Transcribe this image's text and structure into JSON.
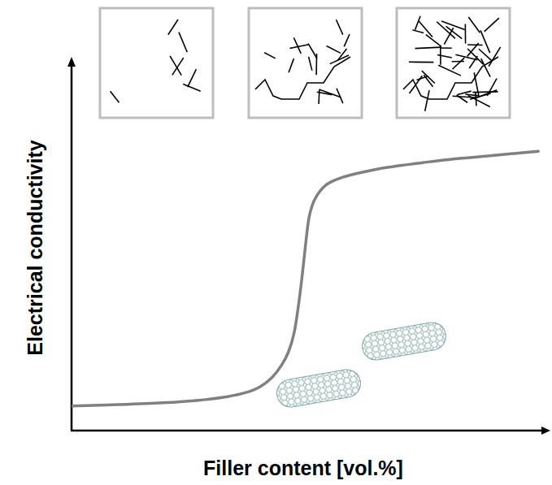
{
  "chart_data": {
    "type": "line",
    "x_label": "Filler content [vol.%]",
    "y_label": "Electrical conductivity",
    "x": [
      0,
      10,
      19.3,
      27,
      33.1,
      37,
      40,
      42.5,
      44.5,
      46,
      47.2,
      48.1,
      48.9,
      49.6,
      50.3,
      51.1,
      52.1,
      53.3,
      54.7,
      57.5,
      60.7,
      67,
      74.5,
      81,
      88.3,
      94,
      99
    ],
    "values": [
      6.7,
      7.1,
      7.6,
      8.3,
      9.3,
      10.4,
      12,
      14.5,
      17.8,
      21.5,
      26.7,
      34,
      42.2,
      50.5,
      57.8,
      61.8,
      64.4,
      66.4,
      67.8,
      69.3,
      70.4,
      72,
      73.3,
      74.3,
      75.1,
      75.8,
      76.4
    ],
    "color": "#808080",
    "xlim": [
      0,
      100
    ],
    "ylim": [
      0,
      100
    ],
    "grid": false,
    "tick_labels": false
  }
}
